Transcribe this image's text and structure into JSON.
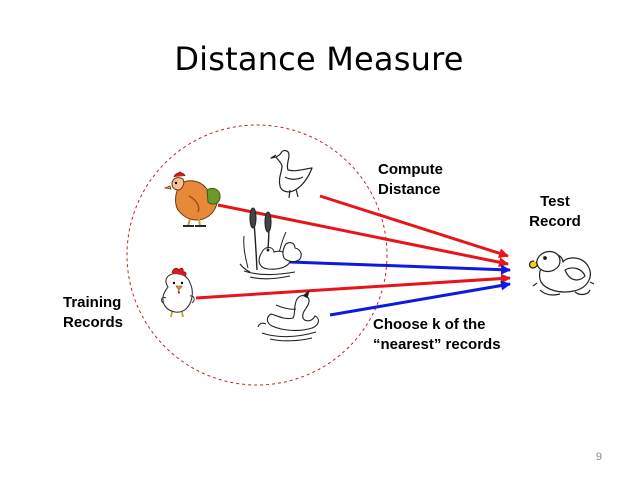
{
  "title": "Distance Measure",
  "labels": {
    "compute_distance": [
      "Compute",
      "Distance"
    ],
    "test_record": [
      "Test",
      "Record"
    ],
    "training_records": [
      "Training",
      "Records"
    ],
    "choose_k": [
      "Choose k of the",
      "“nearest” records"
    ]
  },
  "page_number": "9",
  "icons": [
    "goose-icon",
    "rooster-icon",
    "ducks-in-reeds-icon",
    "chicken-icon",
    "swan-icon",
    "rubber-duck-icon"
  ],
  "colors": {
    "red_arrow": "#e8141b",
    "blue_arrow": "#0d1be0",
    "circle": "#cc2020"
  }
}
